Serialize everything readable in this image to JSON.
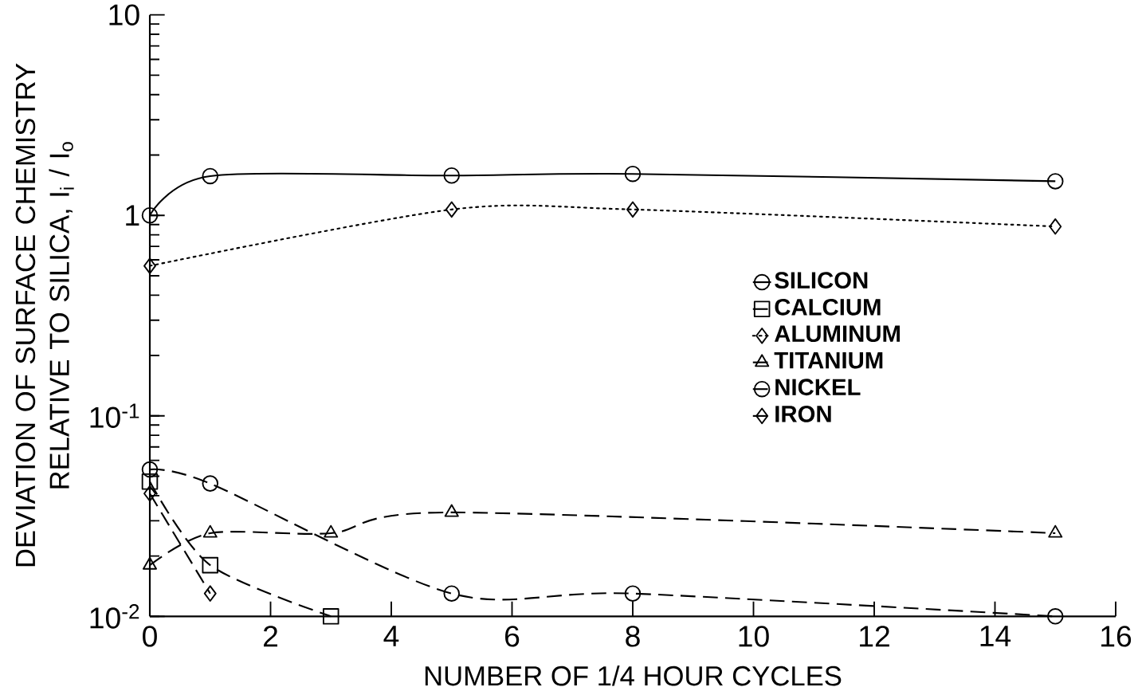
{
  "chart_data": {
    "type": "line",
    "xlabel": "NUMBER OF 1/4 HOUR CYCLES",
    "ylabel": "DEVIATION OF SURFACE CHEMISTRY RELATIVE TO SILICA, I$_{i}$ / I$_{o}$",
    "log": "y",
    "xlim": [
      0,
      16
    ],
    "ylim": [
      0.01,
      10
    ],
    "xticks": [
      0,
      2,
      4,
      6,
      8,
      10,
      12,
      14,
      16
    ],
    "yticks": [
      {
        "value": 0.01,
        "label": "10$^{-2}$"
      },
      {
        "value": 0.1,
        "label": "10$^{-1}$"
      },
      {
        "value": 1,
        "label": "1"
      },
      {
        "value": 10,
        "label": "10"
      }
    ],
    "legend": "right",
    "series": [
      {
        "name": "SILICON",
        "color": "#000000",
        "marker": "circle",
        "line_style": "solid",
        "x": [
          0,
          1,
          5,
          8,
          15
        ],
        "values": [
          1.0,
          1.57,
          1.58,
          1.61,
          1.48
        ]
      },
      {
        "name": "CALCIUM",
        "color": "#000000",
        "marker": "square",
        "line_style": "dashed",
        "x": [
          0,
          1,
          3
        ],
        "values": [
          0.047,
          0.018,
          0.01
        ]
      },
      {
        "name": "ALUMINUM",
        "color": "#000000",
        "marker": "diamond",
        "line_style": "dotted",
        "x": [
          0,
          5,
          8,
          15
        ],
        "values": [
          0.56,
          1.07,
          1.07,
          0.88
        ]
      },
      {
        "name": "TITANIUM",
        "color": "#000000",
        "marker": "triangle",
        "line_style": "dashed",
        "x": [
          0,
          1,
          3,
          5,
          15
        ],
        "values": [
          0.018,
          0.026,
          0.026,
          0.033,
          0.026
        ]
      },
      {
        "name": "NICKEL",
        "color": "#000000",
        "marker": "circle",
        "line_style": "dashed",
        "x": [
          0,
          1,
          5,
          8,
          15
        ],
        "values": [
          0.054,
          0.046,
          0.013,
          0.013,
          0.01
        ]
      },
      {
        "name": "IRON",
        "color": "#000000",
        "marker": "diamond",
        "line_style": "dashed",
        "x": [
          0,
          1
        ],
        "values": [
          0.041,
          0.013
        ]
      }
    ]
  }
}
